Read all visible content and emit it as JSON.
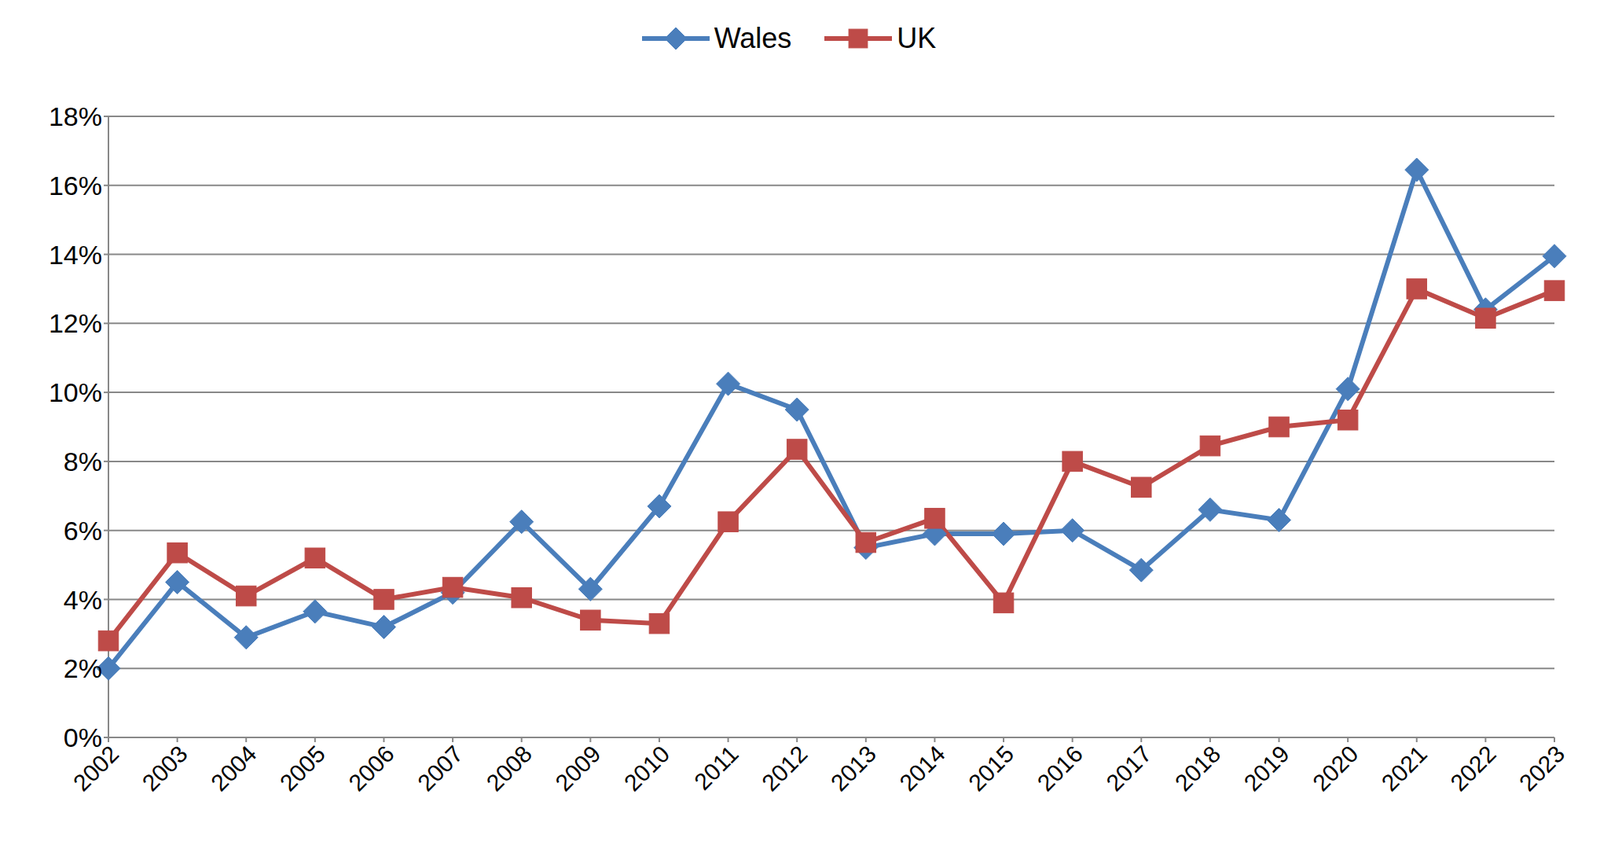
{
  "chart_data": {
    "type": "line",
    "categories": [
      "2002",
      "2003",
      "2004",
      "2005",
      "2006",
      "2007",
      "2008",
      "2009",
      "2010",
      "2011",
      "2012",
      "2013",
      "2014",
      "2015",
      "2016",
      "2017",
      "2018",
      "2019",
      "2020",
      "2021",
      "2022",
      "2023"
    ],
    "series": [
      {
        "name": "Wales",
        "color": "#4a7ebb",
        "marker": "diamond",
        "values": [
          2.0,
          4.5,
          2.9,
          3.65,
          3.2,
          4.2,
          6.25,
          4.3,
          6.7,
          10.25,
          9.5,
          5.5,
          5.9,
          5.9,
          6.0,
          4.85,
          6.6,
          6.3,
          10.1,
          16.45,
          12.4,
          13.95
        ]
      },
      {
        "name": "UK",
        "color": "#be4b48",
        "marker": "square",
        "values": [
          2.8,
          5.35,
          4.1,
          5.2,
          4.0,
          4.35,
          4.05,
          3.4,
          3.3,
          6.25,
          8.35,
          5.65,
          6.35,
          3.9,
          8.0,
          7.25,
          8.45,
          9.0,
          9.2,
          13.0,
          12.15,
          12.95
        ]
      }
    ],
    "ylim": [
      0,
      18
    ],
    "yticks": [
      {
        "value": 0,
        "label": "0%"
      },
      {
        "value": 2,
        "label": "2%"
      },
      {
        "value": 4,
        "label": "4%"
      },
      {
        "value": 6,
        "label": "6%"
      },
      {
        "value": 8,
        "label": "8%"
      },
      {
        "value": 10,
        "label": "10%"
      },
      {
        "value": 12,
        "label": "12%"
      },
      {
        "value": 14,
        "label": "14%"
      },
      {
        "value": 16,
        "label": "16%"
      },
      {
        "value": 18,
        "label": "18%"
      }
    ],
    "grid": true,
    "legend": "top"
  }
}
